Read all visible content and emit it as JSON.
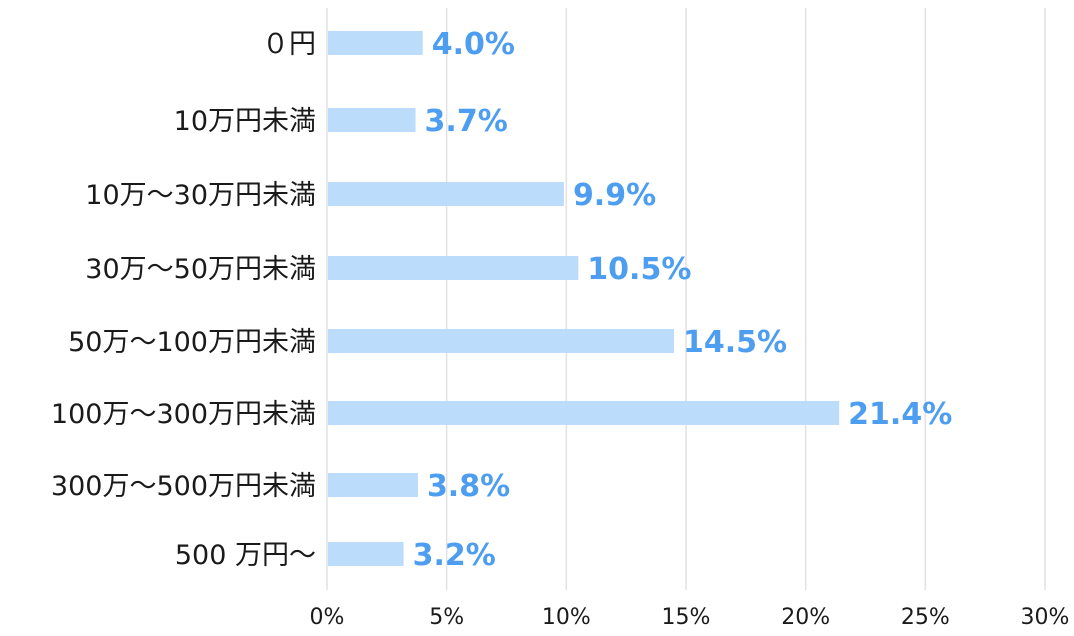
{
  "chart_data": {
    "type": "bar",
    "orientation": "horizontal",
    "categories": [
      "０円",
      "10万円未満",
      "10万～30万円未満",
      "30万～50万円未満",
      "50万～100万円未満",
      "100万～300万円未満",
      "300万～500万円未満",
      "500 万円～"
    ],
    "values": [
      4.0,
      3.7,
      9.9,
      10.5,
      14.5,
      21.4,
      3.8,
      3.2
    ],
    "value_labels": [
      "4.0%",
      "3.7%",
      "9.9%",
      "10.5%",
      "14.5%",
      "21.4%",
      "3.8%",
      "3.2%"
    ],
    "x_ticks": [
      "0%",
      "5%",
      "10%",
      "15%",
      "20%",
      "25%",
      "30%"
    ],
    "xlim": [
      0,
      30
    ],
    "grid": true,
    "legend": "none",
    "title": "",
    "xlabel": "",
    "ylabel": ""
  },
  "colors": {
    "bar": "#bcdcfb",
    "value_label": "#4d9df0",
    "grid": "#e2e2e2",
    "text": "#1a1a1a"
  }
}
